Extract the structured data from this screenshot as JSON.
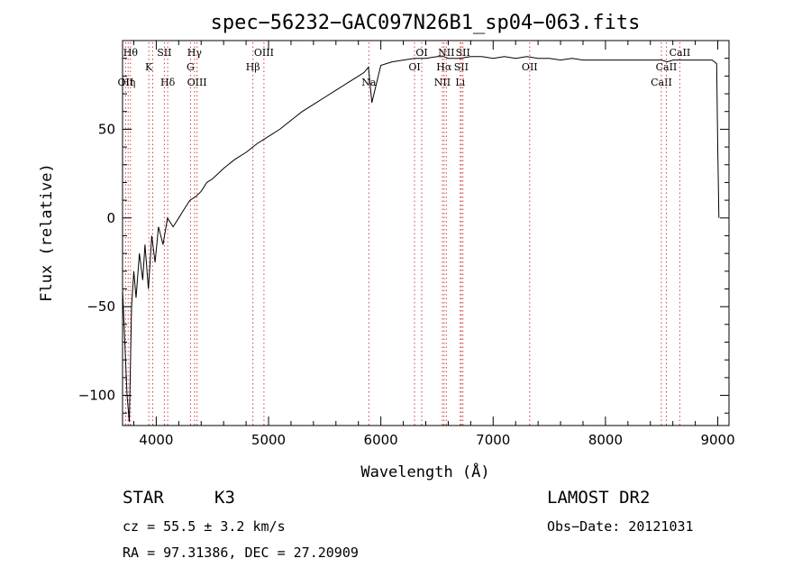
{
  "chart_data": {
    "type": "line",
    "title": "spec−56232−GAC097N26B1_sp04−063.fits",
    "xlabel": "Wavelength (Å)",
    "ylabel": "Flux (relative)",
    "xlim": [
      3700,
      9100
    ],
    "ylim": [
      -117,
      100
    ],
    "xticks": [
      4000,
      5000,
      6000,
      7000,
      8000,
      9000
    ],
    "xtick_labels": [
      "4000",
      "5000",
      "6000",
      "7000",
      "8000",
      "9000"
    ],
    "yticks": [
      -100,
      -50,
      0,
      50
    ],
    "ytick_labels": [
      "−100",
      "−50",
      "0",
      "50"
    ],
    "series": [
      {
        "color": "#000000",
        "x": [
          3700,
          3720,
          3740,
          3760,
          3780,
          3800,
          3820,
          3850,
          3880,
          3900,
          3930,
          3960,
          3990,
          4020,
          4060,
          4100,
          4150,
          4200,
          4250,
          4300,
          4350,
          4400,
          4450,
          4500,
          4600,
          4700,
          4800,
          4900,
          5000,
          5100,
          5200,
          5300,
          5400,
          5500,
          5600,
          5700,
          5800,
          5850,
          5890,
          5920,
          6000,
          6100,
          6200,
          6300,
          6400,
          6500,
          6560,
          6600,
          6700,
          6800,
          6870,
          6900,
          7000,
          7100,
          7200,
          7300,
          7400,
          7500,
          7600,
          7700,
          7800,
          7900,
          8000,
          8100,
          8200,
          8300,
          8400,
          8500,
          8550,
          8600,
          8700,
          8800,
          8900,
          8950,
          8990,
          9000,
          9010
        ],
        "y": [
          -40,
          -70,
          -100,
          -115,
          -50,
          -30,
          -45,
          -20,
          -35,
          -15,
          -40,
          -10,
          -25,
          -5,
          -15,
          0,
          -5,
          0,
          5,
          10,
          12,
          15,
          20,
          22,
          28,
          33,
          37,
          42,
          46,
          50,
          55,
          60,
          64,
          68,
          72,
          76,
          80,
          82,
          85,
          65,
          86,
          88,
          89,
          90,
          90,
          91,
          91,
          90,
          90,
          91,
          91,
          91,
          90,
          91,
          90,
          91,
          90,
          90,
          89,
          90,
          89,
          89,
          89,
          89,
          89,
          89,
          89,
          89,
          88,
          89,
          89,
          89,
          89,
          89,
          87,
          40,
          0
        ]
      }
    ],
    "lines": [
      {
        "wave": 3727,
        "label": "OII",
        "row": 3
      },
      {
        "wave": 3750,
        "label": "Hη",
        "row": 3
      },
      {
        "wave": 3771,
        "label": "Hθ",
        "row": 1
      },
      {
        "wave": 3934,
        "label": "K",
        "row": 2
      },
      {
        "wave": 3969,
        "label": "",
        "row": 0
      },
      {
        "wave": 4072,
        "label": "SII",
        "row": 1
      },
      {
        "wave": 4102,
        "label": "Hδ",
        "row": 3
      },
      {
        "wave": 4305,
        "label": "G",
        "row": 2
      },
      {
        "wave": 4341,
        "label": "Hγ",
        "row": 1
      },
      {
        "wave": 4363,
        "label": "OIII",
        "row": 3
      },
      {
        "wave": 4861,
        "label": "Hβ",
        "row": 2
      },
      {
        "wave": 4959,
        "label": "OIII",
        "row": 1
      },
      {
        "wave": 5893,
        "label": "Na",
        "row": 3
      },
      {
        "wave": 6300,
        "label": "OI",
        "row": 2
      },
      {
        "wave": 6364,
        "label": "OI",
        "row": 1
      },
      {
        "wave": 6548,
        "label": "NII",
        "row": 3
      },
      {
        "wave": 6563,
        "label": "Hα",
        "row": 2
      },
      {
        "wave": 6583,
        "label": "NII",
        "row": 1
      },
      {
        "wave": 6707,
        "label": "Li",
        "row": 3
      },
      {
        "wave": 6716,
        "label": "SII",
        "row": 2
      },
      {
        "wave": 6731,
        "label": "SII",
        "row": 1
      },
      {
        "wave": 7325,
        "label": "OII",
        "row": 2
      },
      {
        "wave": 8498,
        "label": "CaII",
        "row": 3
      },
      {
        "wave": 8542,
        "label": "CaII",
        "row": 2
      },
      {
        "wave": 8662,
        "label": "CaII",
        "row": 1
      }
    ]
  },
  "info": {
    "class": "STAR",
    "subclass": "K3",
    "survey": "LAMOST DR2",
    "cz": "cz = 55.5 ± 3.2 km/s",
    "obs_date": "Obs−Date: 20121031",
    "coords": "RA =  97.31386, DEC =  27.20909"
  }
}
